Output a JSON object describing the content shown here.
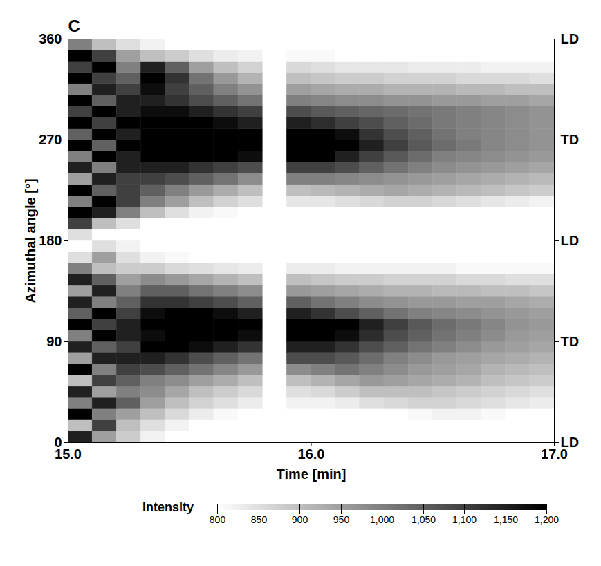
{
  "chart_data": {
    "type": "heatmap",
    "panel_label": "C",
    "xlabel": "Time [min]",
    "ylabel": "Azimuthal angle [°]",
    "xlim": [
      15,
      17
    ],
    "xticks": [
      15,
      16,
      17
    ],
    "ylim": [
      0,
      360
    ],
    "yticks": [
      0,
      90,
      180,
      270,
      360
    ],
    "y2ticks": [
      {
        "value": 0,
        "label": "LD"
      },
      {
        "value": 90,
        "label": "TD"
      },
      {
        "value": 180,
        "label": "LD"
      },
      {
        "value": 270,
        "label": "TD"
      },
      {
        "value": 360,
        "label": "LD"
      }
    ],
    "x_edges": [
      15,
      15.1,
      15.2,
      15.3,
      15.4,
      15.5,
      15.6,
      15.7,
      15.8,
      15.9,
      16,
      16.1,
      16.2,
      16.3,
      16.4,
      16.5,
      16.6,
      16.7,
      16.8,
      16.9,
      17
    ],
    "y_edges": [
      0,
      10,
      20,
      30,
      40,
      50,
      60,
      70,
      80,
      90,
      100,
      110,
      120,
      130,
      140,
      150,
      160,
      170,
      180,
      190,
      200,
      210,
      220,
      230,
      240,
      250,
      260,
      270,
      280,
      290,
      300,
      310,
      320,
      330,
      340,
      350,
      360
    ],
    "cells": [
      [
        1150,
        950,
        880,
        820,
        800,
        800,
        800,
        800,
        null,
        800,
        800,
        800,
        800,
        800,
        800,
        800,
        800,
        800,
        800,
        800
      ],
      [
        900,
        1100,
        900,
        850,
        820,
        800,
        800,
        800,
        null,
        800,
        800,
        800,
        800,
        800,
        800,
        800,
        800,
        800,
        800,
        800
      ],
      [
        1200,
        1000,
        950,
        900,
        860,
        830,
        810,
        800,
        null,
        800,
        800,
        800,
        800,
        800,
        810,
        820,
        820,
        810,
        800,
        800
      ],
      [
        1000,
        1150,
        1050,
        950,
        900,
        870,
        850,
        830,
        null,
        820,
        820,
        830,
        850,
        860,
        870,
        870,
        860,
        850,
        840,
        830
      ],
      [
        1150,
        950,
        1000,
        980,
        940,
        900,
        880,
        860,
        null,
        850,
        860,
        880,
        900,
        900,
        900,
        890,
        880,
        870,
        860,
        850
      ],
      [
        900,
        1100,
        1050,
        1000,
        980,
        950,
        930,
        900,
        null,
        900,
        920,
        940,
        960,
        950,
        940,
        930,
        920,
        900,
        890,
        880
      ],
      [
        1200,
        1000,
        1100,
        1080,
        1050,
        1020,
        990,
        960,
        null,
        980,
        1000,
        1020,
        1000,
        980,
        960,
        950,
        940,
        920,
        910,
        900
      ],
      [
        950,
        1150,
        1150,
        1150,
        1120,
        1080,
        1050,
        1020,
        null,
        1080,
        1080,
        1060,
        1030,
        1000,
        980,
        960,
        950,
        940,
        930,
        920
      ],
      [
        1150,
        1050,
        1100,
        1200,
        1200,
        1180,
        1150,
        1120,
        null,
        1150,
        1150,
        1120,
        1080,
        1050,
        1020,
        1000,
        980,
        960,
        950,
        940
      ],
      [
        1000,
        1200,
        1150,
        1180,
        1200,
        1200,
        1200,
        1180,
        null,
        1200,
        1200,
        1180,
        1130,
        1080,
        1050,
        1020,
        1000,
        980,
        960,
        950
      ],
      [
        1200,
        1100,
        1150,
        1200,
        1200,
        1200,
        1200,
        1200,
        null,
        1200,
        1200,
        1200,
        1150,
        1100,
        1060,
        1030,
        1010,
        990,
        970,
        960
      ],
      [
        1050,
        1200,
        1100,
        1180,
        1200,
        1200,
        1180,
        1150,
        null,
        1150,
        1120,
        1080,
        1050,
        1020,
        1000,
        990,
        980,
        970,
        960,
        950
      ],
      [
        1150,
        1000,
        1050,
        1120,
        1120,
        1100,
        1080,
        1050,
        null,
        1050,
        1020,
        1000,
        980,
        970,
        960,
        960,
        950,
        950,
        940,
        930
      ],
      [
        950,
        1150,
        1000,
        1050,
        1050,
        1020,
        1000,
        980,
        null,
        960,
        950,
        940,
        930,
        920,
        920,
        910,
        910,
        900,
        900,
        890
      ],
      [
        1150,
        1050,
        950,
        980,
        960,
        940,
        920,
        900,
        null,
        900,
        890,
        880,
        880,
        870,
        870,
        870,
        860,
        860,
        850,
        850
      ],
      [
        1000,
        900,
        880,
        880,
        860,
        850,
        840,
        830,
        null,
        830,
        830,
        820,
        820,
        820,
        820,
        820,
        810,
        810,
        810,
        810
      ],
      [
        850,
        950,
        850,
        820,
        810,
        800,
        800,
        800,
        null,
        800,
        800,
        800,
        800,
        800,
        800,
        800,
        800,
        800,
        800,
        800
      ],
      [
        800,
        850,
        820,
        800,
        800,
        800,
        800,
        800,
        null,
        800,
        800,
        800,
        800,
        800,
        800,
        800,
        800,
        800,
        800,
        800
      ],
      [
        850,
        800,
        800,
        800,
        800,
        800,
        800,
        800,
        null,
        800,
        800,
        800,
        800,
        800,
        800,
        800,
        800,
        800,
        800,
        800
      ],
      [
        1100,
        900,
        850,
        800,
        800,
        800,
        800,
        800,
        null,
        800,
        800,
        800,
        800,
        800,
        800,
        800,
        800,
        800,
        800,
        800
      ],
      [
        1200,
        1150,
        1000,
        900,
        850,
        820,
        810,
        800,
        null,
        800,
        800,
        800,
        800,
        800,
        800,
        800,
        800,
        800,
        800,
        800
      ],
      [
        1000,
        1200,
        1100,
        1000,
        950,
        900,
        870,
        850,
        null,
        840,
        840,
        850,
        860,
        870,
        870,
        860,
        850,
        840,
        830,
        820
      ],
      [
        1200,
        1050,
        1100,
        1050,
        1000,
        960,
        930,
        900,
        null,
        900,
        910,
        920,
        930,
        940,
        930,
        920,
        910,
        900,
        890,
        880
      ],
      [
        950,
        1150,
        1100,
        1100,
        1080,
        1050,
        1020,
        980,
        null,
        1000,
        1000,
        990,
        980,
        970,
        960,
        950,
        940,
        930,
        920,
        910
      ],
      [
        1150,
        1000,
        1150,
        1150,
        1150,
        1120,
        1100,
        1080,
        null,
        1100,
        1100,
        1080,
        1050,
        1020,
        1000,
        980,
        970,
        960,
        950,
        940
      ],
      [
        1000,
        1200,
        1150,
        1200,
        1200,
        1200,
        1200,
        1180,
        null,
        1200,
        1200,
        1150,
        1100,
        1060,
        1030,
        1000,
        990,
        980,
        970,
        960
      ],
      [
        1200,
        1050,
        1200,
        1200,
        1200,
        1200,
        1200,
        1200,
        null,
        1200,
        1200,
        1200,
        1150,
        1100,
        1060,
        1030,
        1010,
        990,
        980,
        970
      ],
      [
        1050,
        1200,
        1150,
        1200,
        1200,
        1200,
        1200,
        1200,
        null,
        1200,
        1200,
        1180,
        1120,
        1080,
        1050,
        1020,
        1000,
        990,
        980,
        970
      ],
      [
        1200,
        1100,
        1200,
        1200,
        1200,
        1200,
        1180,
        1150,
        null,
        1150,
        1130,
        1100,
        1080,
        1050,
        1030,
        1010,
        1000,
        990,
        980,
        970
      ],
      [
        1100,
        1200,
        1150,
        1180,
        1180,
        1150,
        1120,
        1100,
        null,
        1080,
        1060,
        1050,
        1040,
        1030,
        1020,
        1010,
        1000,
        990,
        980,
        970
      ],
      [
        1200,
        1050,
        1150,
        1150,
        1120,
        1080,
        1050,
        1020,
        null,
        1000,
        990,
        980,
        980,
        970,
        970,
        960,
        960,
        950,
        950,
        940
      ],
      [
        1000,
        1150,
        1100,
        1180,
        1100,
        1050,
        1000,
        970,
        null,
        950,
        940,
        930,
        930,
        920,
        920,
        920,
        910,
        910,
        900,
        900
      ],
      [
        1200,
        1100,
        1050,
        1200,
        1120,
        1020,
        960,
        920,
        null,
        900,
        890,
        880,
        880,
        870,
        870,
        870,
        860,
        860,
        860,
        850
      ],
      [
        1100,
        1200,
        1000,
        1150,
        1050,
        950,
        900,
        870,
        null,
        860,
        850,
        840,
        840,
        840,
        830,
        830,
        830,
        820,
        820,
        820
      ],
      [
        1200,
        1100,
        950,
        900,
        880,
        850,
        830,
        820,
        null,
        810,
        810,
        800,
        800,
        800,
        800,
        800,
        800,
        800,
        800,
        800
      ],
      [
        1000,
        900,
        850,
        820,
        800,
        800,
        800,
        800,
        null,
        800,
        800,
        800,
        800,
        800,
        800,
        800,
        800,
        800,
        800,
        800
      ]
    ],
    "colorbar": {
      "label": "Intensity",
      "range": [
        800,
        1200
      ],
      "ticks": [
        800,
        850,
        900,
        950,
        1000,
        1050,
        1100,
        1150,
        1200
      ],
      "colors": [
        "#ffffff",
        "#000000"
      ]
    }
  }
}
